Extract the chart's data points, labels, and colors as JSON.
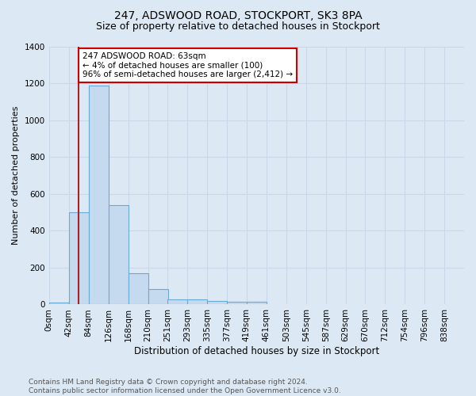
{
  "title1": "247, ADSWOOD ROAD, STOCKPORT, SK3 8PA",
  "title2": "Size of property relative to detached houses in Stockport",
  "xlabel": "Distribution of detached houses by size in Stockport",
  "ylabel": "Number of detached properties",
  "footnote": "Contains HM Land Registry data © Crown copyright and database right 2024.\nContains public sector information licensed under the Open Government Licence v3.0.",
  "bin_labels": [
    "0sqm",
    "42sqm",
    "84sqm",
    "126sqm",
    "168sqm",
    "210sqm",
    "251sqm",
    "293sqm",
    "335sqm",
    "377sqm",
    "419sqm",
    "461sqm",
    "503sqm",
    "545sqm",
    "587sqm",
    "629sqm",
    "670sqm",
    "712sqm",
    "754sqm",
    "796sqm",
    "838sqm"
  ],
  "bar_heights": [
    12,
    500,
    1190,
    540,
    170,
    83,
    28,
    28,
    20,
    15,
    15,
    0,
    0,
    0,
    0,
    0,
    0,
    0,
    0,
    0,
    0
  ],
  "bar_color": "#c5d9ef",
  "bar_edge_color": "#6aaad4",
  "background_color": "#dce9f5",
  "grid_color": "#c8d8e8",
  "annotation_text": "247 ADSWOOD ROAD: 63sqm\n← 4% of detached houses are smaller (100)\n96% of semi-detached houses are larger (2,412) →",
  "annotation_box_color": "#ffffff",
  "annotation_box_edge_color": "#cc0000",
  "red_line_x": 63,
  "ylim": [
    0,
    1400
  ],
  "yticks": [
    0,
    200,
    400,
    600,
    800,
    1000,
    1200,
    1400
  ],
  "title1_fontsize": 10,
  "title2_fontsize": 9,
  "xlabel_fontsize": 8.5,
  "ylabel_fontsize": 8,
  "tick_fontsize": 7.5,
  "footnote_fontsize": 6.5
}
